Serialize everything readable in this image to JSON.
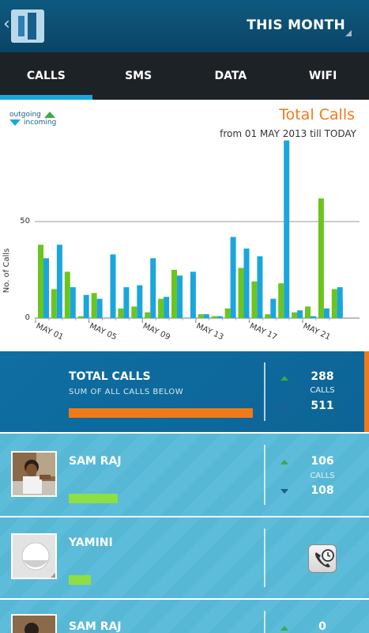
{
  "header": {
    "title": "THIS MONTH"
  },
  "tabs": [
    {
      "label": "CALLS",
      "active": true
    },
    {
      "label": "SMS",
      "active": false
    },
    {
      "label": "DATA",
      "active": false
    },
    {
      "label": "WIFI",
      "active": false
    }
  ],
  "legend": {
    "outgoing": "outgoing",
    "incoming": "incoming"
  },
  "chart_data": {
    "type": "bar",
    "title": "Total Calls",
    "subtitle": "from 01 MAY 2013 till TODAY",
    "ylabel": "No. of Calls",
    "xlabel": "",
    "ylim": [
      0,
      100
    ],
    "y_ticks": [
      0,
      50
    ],
    "grid": true,
    "x_tick_labels": [
      "MAY 01",
      "MAY 05",
      "MAY 09",
      "MAY 13",
      "MAY 17",
      "MAY 21"
    ],
    "x_tick_day_index": [
      0,
      4,
      8,
      12,
      16,
      20
    ],
    "days": [
      "1",
      "2",
      "3",
      "4",
      "5",
      "6",
      "7",
      "8",
      "9",
      "10",
      "11",
      "12",
      "13",
      "14",
      "15",
      "16",
      "17",
      "18",
      "19",
      "20",
      "21",
      "22",
      "23"
    ],
    "series": [
      {
        "name": "outgoing",
        "color": "#6cc51e",
        "values": [
          38,
          15,
          24,
          1,
          13,
          0,
          5,
          6,
          3,
          10,
          25,
          0,
          2,
          1,
          5,
          26,
          19,
          2,
          18,
          3,
          6,
          62,
          15
        ]
      },
      {
        "name": "incoming",
        "color": "#1aa6dc",
        "values": [
          31,
          38,
          16,
          12,
          10,
          33,
          16,
          17,
          31,
          11,
          22,
          24,
          2,
          1,
          42,
          36,
          32,
          10,
          92,
          4,
          1,
          5,
          9
        ]
      }
    ],
    "incoming_extra": [
      16
    ]
  },
  "list": {
    "total": {
      "title": "TOTAL CALLS",
      "subtitle": "SUM OF ALL CALLS BELOW",
      "outgoing": "288",
      "unit": "CALLS",
      "incoming": "511"
    },
    "contacts": [
      {
        "name": "SAM RAJ",
        "outgoing": "106",
        "unit": "CALLS",
        "incoming": "108"
      },
      {
        "name": "YAMINI"
      },
      {
        "name": "SAM RAJ",
        "outgoing": "0"
      }
    ]
  },
  "colors": {
    "header": "#0f5a80",
    "tab_bar": "#1d2226",
    "accent": "#1aa6dc",
    "title_orange": "#f07a1a",
    "outgoing_green": "#6cc51e",
    "incoming_blue": "#1aa6dc",
    "row_bg": "#57b8d6",
    "total_bg": "#0f6ea2"
  },
  "icons": {
    "back": "chevron-left-icon",
    "logo": "app-logo",
    "menu": "overflow-corner-icon",
    "call_log": "phone-clock-icon"
  }
}
